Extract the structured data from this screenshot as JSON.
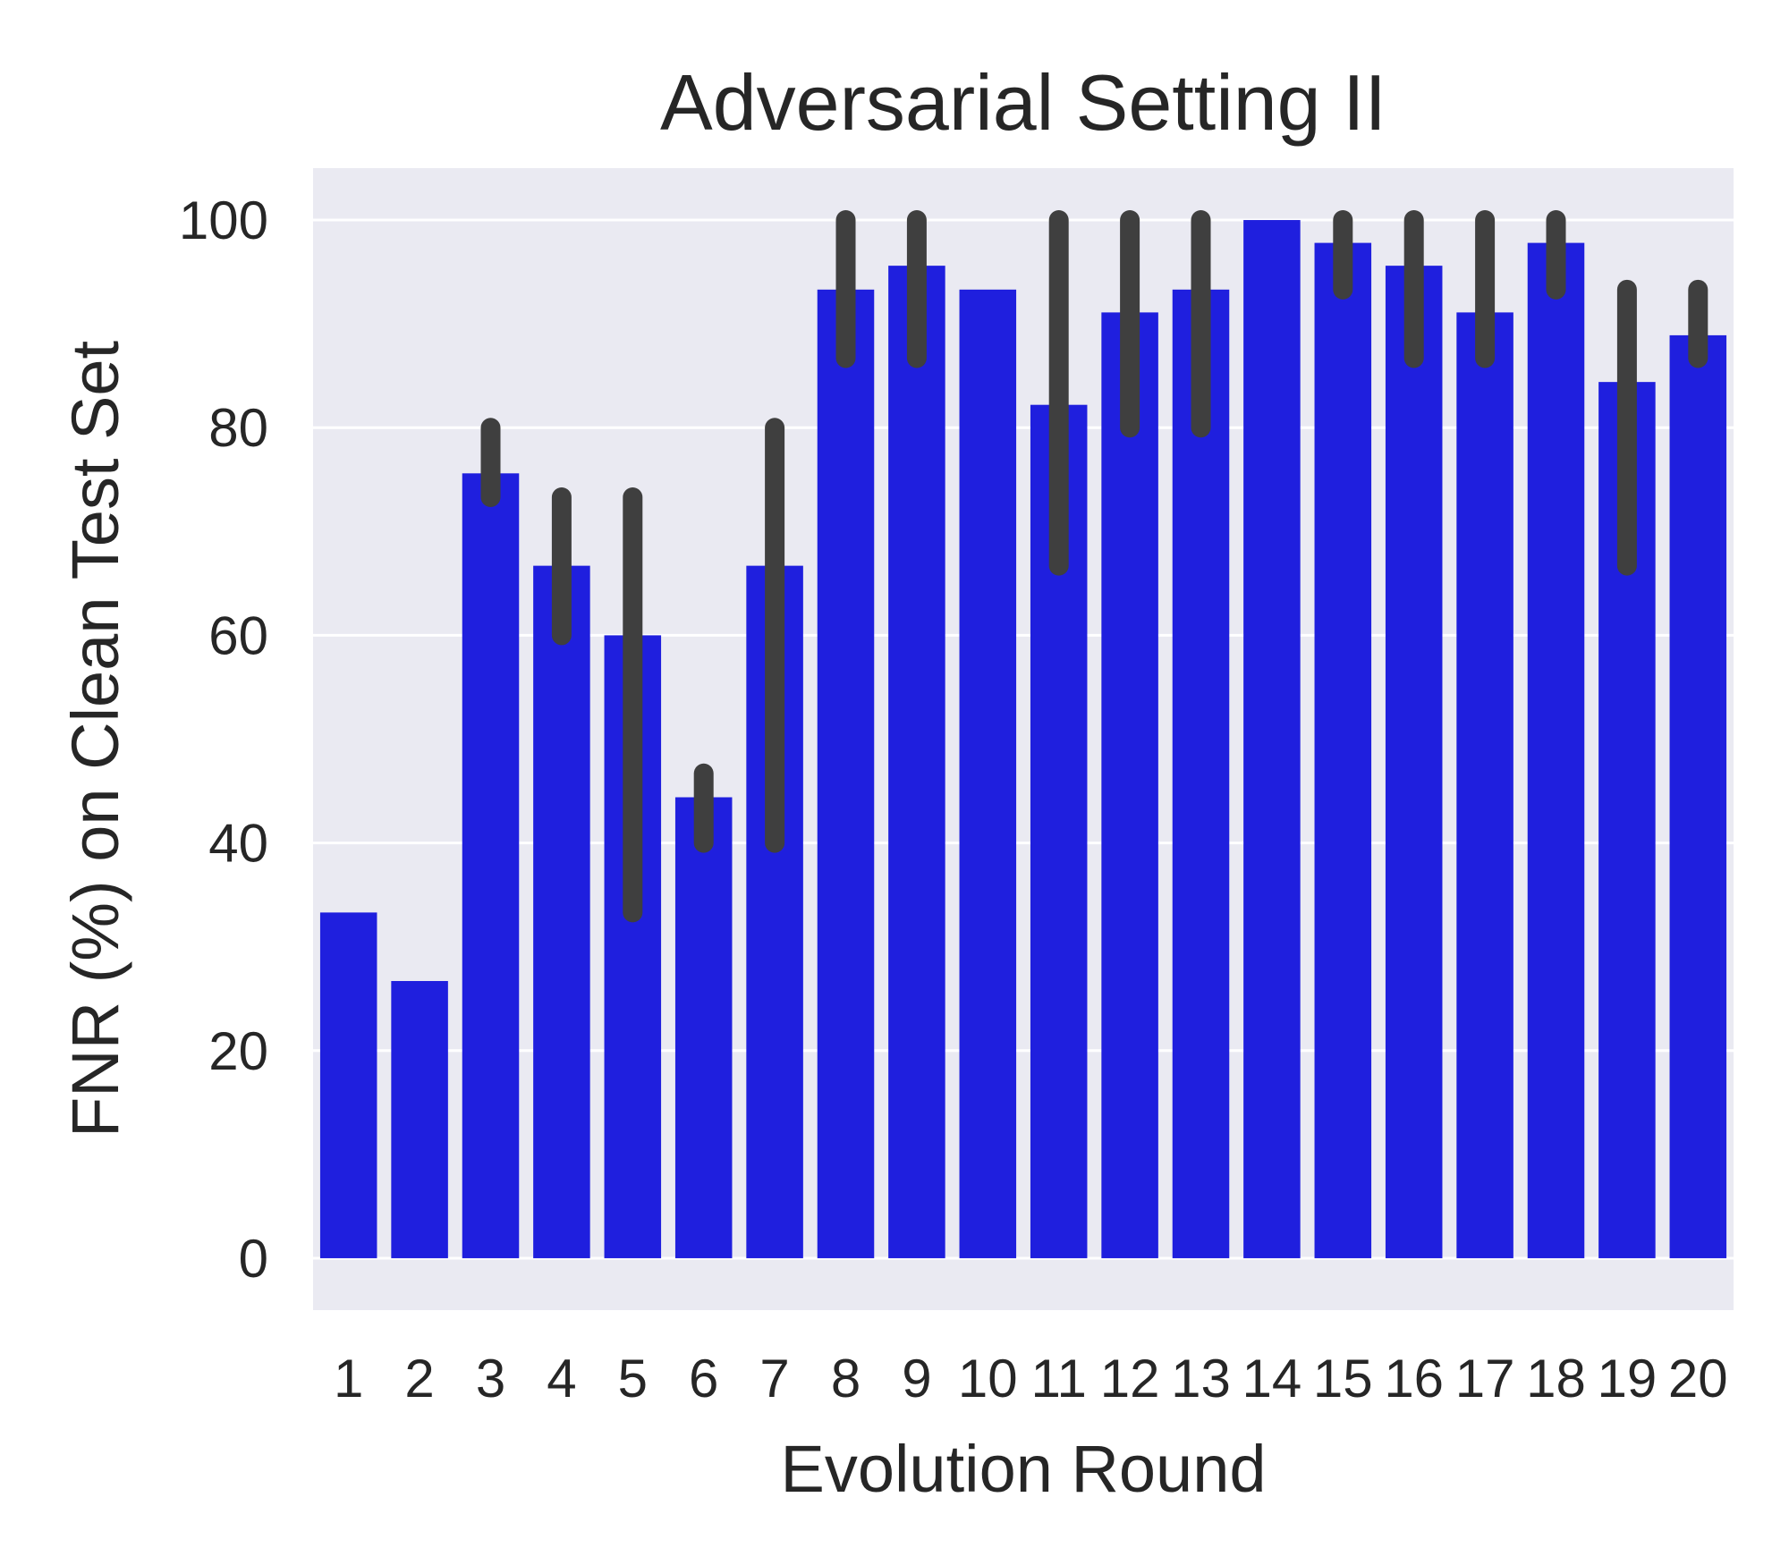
{
  "chart_data": {
    "type": "bar",
    "title": "Adversarial Setting II",
    "xlabel": "Evolution Round",
    "ylabel": "FNR (%) on Clean Test Set",
    "categories": [
      "1",
      "2",
      "3",
      "4",
      "5",
      "6",
      "7",
      "8",
      "9",
      "10",
      "11",
      "12",
      "13",
      "14",
      "15",
      "16",
      "17",
      "18",
      "19",
      "20"
    ],
    "values": [
      33.3,
      26.7,
      75.6,
      66.7,
      60.0,
      44.4,
      66.7,
      93.3,
      95.6,
      93.3,
      82.2,
      91.1,
      93.3,
      100.0,
      97.8,
      95.6,
      91.1,
      97.8,
      84.4,
      88.9
    ],
    "error_low": [
      null,
      null,
      73.3,
      60.0,
      33.3,
      40.0,
      40.0,
      86.7,
      86.7,
      null,
      66.7,
      80.0,
      80.0,
      null,
      93.3,
      86.7,
      86.7,
      93.3,
      66.7,
      86.7
    ],
    "error_high": [
      null,
      null,
      80.0,
      73.3,
      73.3,
      46.7,
      80.0,
      100.0,
      100.0,
      null,
      100.0,
      100.0,
      100.0,
      null,
      100.0,
      100.0,
      100.0,
      100.0,
      93.3,
      93.3
    ],
    "yticks": [
      0,
      20,
      40,
      60,
      80,
      100
    ],
    "ylim": [
      -5,
      105
    ],
    "grid": true,
    "bar_color": "#1f1fde",
    "error_color": "#3f3f3f",
    "background_color": "#eaeaf2"
  }
}
